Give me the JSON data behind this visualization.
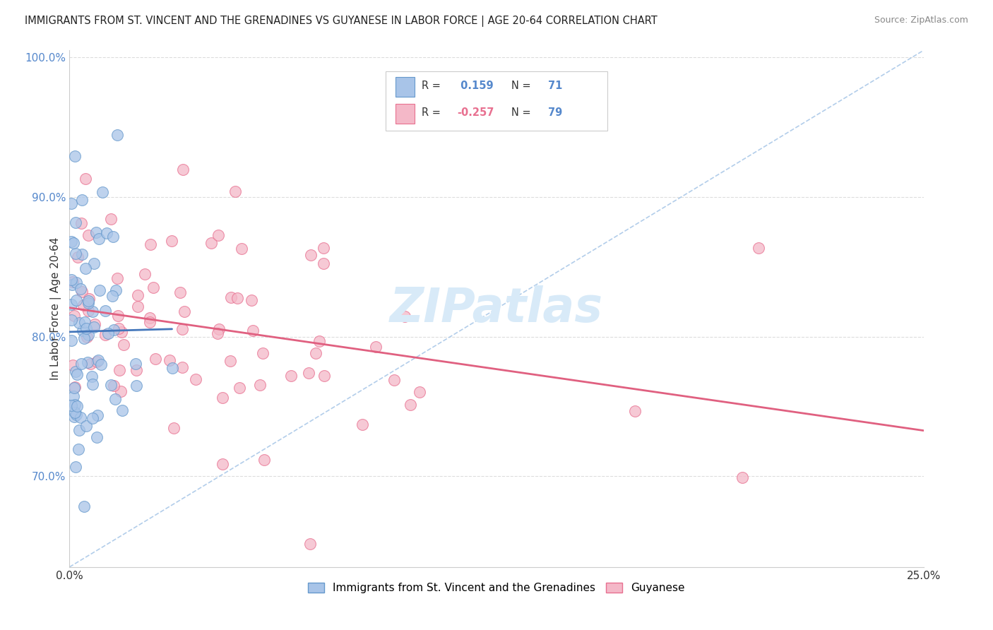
{
  "title": "IMMIGRANTS FROM ST. VINCENT AND THE GRENADINES VS GUYANESE IN LABOR FORCE | AGE 20-64 CORRELATION CHART",
  "source": "Source: ZipAtlas.com",
  "ylabel": "In Labor Force | Age 20-64",
  "xlim": [
    0.0,
    0.25
  ],
  "ylim": [
    0.635,
    1.005
  ],
  "yticks": [
    0.7,
    0.8,
    0.9,
    1.0
  ],
  "xtick_positions": [
    0.0,
    0.05,
    0.1,
    0.15,
    0.2,
    0.25
  ],
  "legend1_label": "Immigrants from St. Vincent and the Grenadines",
  "legend2_label": "Guyanese",
  "R1": 0.159,
  "N1": 71,
  "R2": -0.257,
  "N2": 79,
  "color_blue_fill": "#a8c4e8",
  "color_blue_edge": "#6699cc",
  "color_pink_fill": "#f4b8c8",
  "color_pink_edge": "#e87090",
  "color_blue_trendline": "#4477bb",
  "color_pink_trendline": "#e06080",
  "color_diag_line": "#aac8e8",
  "grid_color": "#dddddd",
  "watermark_color": "#d8eaf8"
}
